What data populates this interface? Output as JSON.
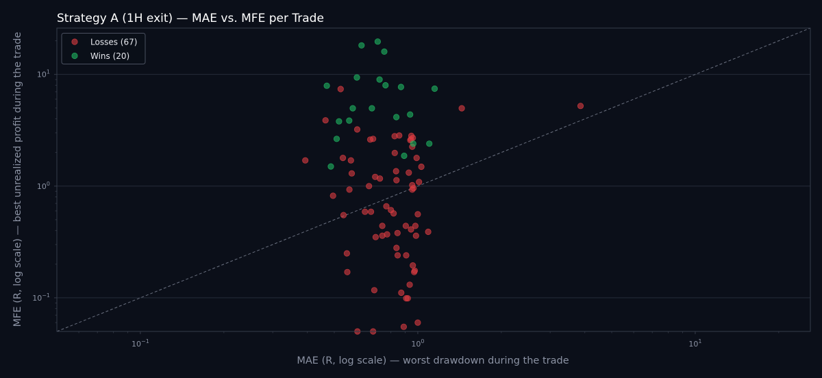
{
  "chart_data": {
    "type": "scatter",
    "title": "Strategy A (1H exit) — MAE vs. MFE per Trade",
    "xlabel": "MAE (R, log scale) — worst drawdown during the trade",
    "ylabel": "MFE (R, log scale) — best unrealized profit during the trade",
    "x_scale": "log",
    "y_scale": "log",
    "xlim": [
      0.05,
      26
    ],
    "ylim": [
      0.05,
      26
    ],
    "x_ticks": [
      {
        "value": 0.1,
        "base": "10",
        "exp": "−1"
      },
      {
        "value": 1,
        "base": "10",
        "exp": "0"
      },
      {
        "value": 10,
        "base": "10",
        "exp": "1"
      }
    ],
    "y_ticks": [
      {
        "value": 0.1,
        "base": "10",
        "exp": "−1"
      },
      {
        "value": 1,
        "base": "10",
        "exp": "0"
      },
      {
        "value": 10,
        "base": "10",
        "exp": "1"
      }
    ],
    "grid": "horizontal",
    "legend_position": "top-left",
    "reference_line": "y = x",
    "colors": {
      "background": "#0b0f19",
      "axes_face": "#0b0f19",
      "spine": "#363c4a",
      "grid": "#262c3a",
      "text": "#ffffff",
      "muted_text": "#8b92a3",
      "losses": "#dc3c41",
      "wins": "#20b862",
      "diagonal": "#6b7180"
    },
    "series": [
      {
        "name": "Losses (67)",
        "color": "#dc3c41",
        "points": [
          [
            0.393,
            1.7
          ],
          [
            0.465,
            3.88
          ],
          [
            0.495,
            0.82
          ],
          [
            0.527,
            7.4
          ],
          [
            0.537,
            1.79
          ],
          [
            0.54,
            0.55
          ],
          [
            0.555,
            0.25
          ],
          [
            0.557,
            0.17
          ],
          [
            0.567,
            0.93
          ],
          [
            0.574,
            1.7
          ],
          [
            0.578,
            1.3
          ],
          [
            0.605,
            3.22
          ],
          [
            0.606,
            0.05
          ],
          [
            0.645,
            0.59
          ],
          [
            0.667,
            1.0
          ],
          [
            0.674,
            2.61
          ],
          [
            0.678,
            0.59
          ],
          [
            0.69,
            2.65
          ],
          [
            0.69,
            0.05
          ],
          [
            0.697,
            0.117
          ],
          [
            0.702,
            1.21
          ],
          [
            0.705,
            0.35
          ],
          [
            0.73,
            1.17
          ],
          [
            0.745,
            0.44
          ],
          [
            0.745,
            0.36
          ],
          [
            0.77,
            0.66
          ],
          [
            0.775,
            0.37
          ],
          [
            0.8,
            0.61
          ],
          [
            0.818,
            0.57
          ],
          [
            0.825,
            2.8
          ],
          [
            0.826,
            1.98
          ],
          [
            0.835,
            1.36
          ],
          [
            0.838,
            1.13
          ],
          [
            0.838,
            0.28
          ],
          [
            0.845,
            0.38
          ],
          [
            0.846,
            0.24
          ],
          [
            0.857,
            2.84
          ],
          [
            0.872,
            0.111
          ],
          [
            0.89,
            0.055
          ],
          [
            0.905,
            0.44
          ],
          [
            0.908,
            0.24
          ],
          [
            0.908,
            0.099
          ],
          [
            0.92,
            0.099
          ],
          [
            0.928,
            1.32
          ],
          [
            0.935,
            0.131
          ],
          [
            0.945,
            2.63
          ],
          [
            0.945,
            0.41
          ],
          [
            0.948,
            2.82
          ],
          [
            0.955,
            2.25
          ],
          [
            0.955,
            1.02
          ],
          [
            0.955,
            0.93
          ],
          [
            0.96,
            0.195
          ],
          [
            0.97,
            0.17
          ],
          [
            0.975,
            0.175
          ],
          [
            0.98,
            0.44
          ],
          [
            0.985,
            0.36
          ],
          [
            0.99,
            1.79
          ],
          [
            1.0,
            0.56
          ],
          [
            1.0,
            0.06
          ],
          [
            1.01,
            1.09
          ],
          [
            1.03,
            1.49
          ],
          [
            1.09,
            0.39
          ],
          [
            1.44,
            4.98
          ],
          [
            3.86,
            5.22
          ],
          [
            0.94,
            2.58
          ],
          [
            0.96,
            2.7
          ],
          [
            0.965,
            0.96
          ]
        ]
      },
      {
        "name": "Wins (20)",
        "color": "#20b862",
        "points": [
          [
            0.47,
            7.92
          ],
          [
            0.486,
            1.5
          ],
          [
            0.51,
            2.65
          ],
          [
            0.52,
            3.8
          ],
          [
            0.566,
            3.86
          ],
          [
            0.583,
            4.98
          ],
          [
            0.603,
            9.4
          ],
          [
            0.627,
            18.2
          ],
          [
            0.683,
            4.98
          ],
          [
            0.717,
            19.7
          ],
          [
            0.728,
            9.0
          ],
          [
            0.757,
            16.0
          ],
          [
            0.765,
            8.0
          ],
          [
            0.837,
            4.15
          ],
          [
            0.87,
            7.72
          ],
          [
            0.893,
            1.87
          ],
          [
            0.938,
            4.38
          ],
          [
            0.963,
            2.4
          ],
          [
            1.1,
            2.4
          ],
          [
            1.15,
            7.45
          ]
        ]
      }
    ]
  }
}
